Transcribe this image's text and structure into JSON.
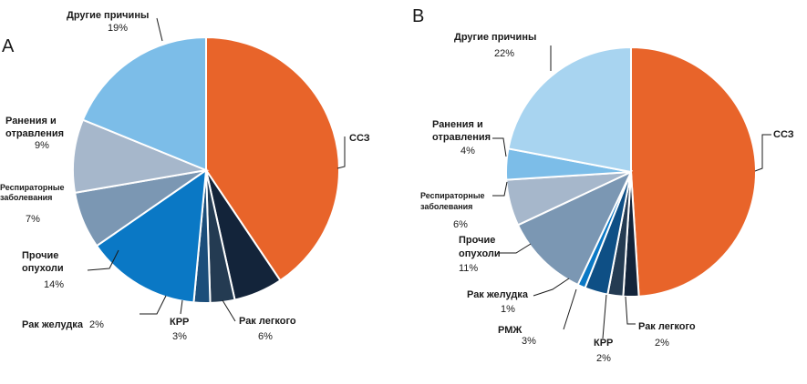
{
  "chart_data": [
    {
      "type": "pie",
      "panel_label": "A",
      "slices": [
        {
          "name": "ССЗ",
          "value": 41,
          "pct_label": "",
          "color": "#E8642A"
        },
        {
          "name": "Рак легкого",
          "value": 6,
          "pct_label": "6%",
          "color": "#13243A"
        },
        {
          "name": "КРР",
          "value": 3,
          "pct_label": "3%",
          "color": "#243B52"
        },
        {
          "name": "Рак желудка",
          "value": 2,
          "pct_label": "2%",
          "color": "#1C4E7A"
        },
        {
          "name": "Прочие опухоли",
          "value": 14,
          "pct_label": "14%",
          "color": "#0A78C5"
        },
        {
          "name": "Респираторные заболевания",
          "value": 7,
          "pct_label": "7%",
          "color": "#7B97B3"
        },
        {
          "name": "Ранения и отравления",
          "value": 9,
          "pct_label": "9%",
          "color": "#A6B7CB"
        },
        {
          "name": "Другие причины",
          "value": 19,
          "pct_label": "19%",
          "color": "#7CBDE8"
        }
      ],
      "text": {
        "other": "Другие причины",
        "other_pct": "19%",
        "injury_1": "Ранения и",
        "injury_2": "отравления",
        "injury_pct": "9%",
        "resp_1": "Респираторные",
        "resp_2": "заболевания",
        "resp_pct": "7%",
        "tumors_1": "Прочие",
        "tumors_2": "опухоли",
        "tumors_pct": "14%",
        "stomach": "Рак желудка",
        "stomach_pct": "2%",
        "crc": "КРР",
        "crc_pct": "3%",
        "lung": "Рак легкого",
        "lung_pct": "6%",
        "cvd": "ССЗ"
      }
    },
    {
      "type": "pie",
      "panel_label": "B",
      "slices": [
        {
          "name": "ССЗ",
          "value": 49,
          "pct_label": "",
          "color": "#E8642A"
        },
        {
          "name": "Рак легкого",
          "value": 2,
          "pct_label": "2%",
          "color": "#13243A"
        },
        {
          "name": "КРР",
          "value": 2,
          "pct_label": "2%",
          "color": "#243B52"
        },
        {
          "name": "РМЖ",
          "value": 3,
          "pct_label": "3%",
          "color": "#0E4F85"
        },
        {
          "name": "Рак желудка",
          "value": 1,
          "pct_label": "1%",
          "color": "#0A78C5"
        },
        {
          "name": "Прочие опухоли",
          "value": 11,
          "pct_label": "11%",
          "color": "#7B97B3"
        },
        {
          "name": "Респираторные заболевания",
          "value": 6,
          "pct_label": "6%",
          "color": "#A6B7CB"
        },
        {
          "name": "Ранения и отравления",
          "value": 4,
          "pct_label": "4%",
          "color": "#7CBDE8"
        },
        {
          "name": "Другие причины",
          "value": 22,
          "pct_label": "22%",
          "color": "#A8D4F0"
        }
      ],
      "text": {
        "other": "Другие причины",
        "other_pct": "22%",
        "injury_1": "Ранения и",
        "injury_2": "отравления",
        "injury_pct": "4%",
        "resp_1": "Респираторные",
        "resp_2": "заболевания",
        "resp_pct": "6%",
        "tumors_1": "Прочие",
        "tumors_2": "опухоли",
        "tumors_pct": "11%",
        "stomach": "Рак желудка",
        "stomach_pct": "1%",
        "breast": "РМЖ",
        "breast_pct": "3%",
        "crc": "КРР",
        "crc_pct": "2%",
        "lung": "Рак легкого",
        "lung_pct": "2%",
        "cvd": "ССЗ"
      }
    }
  ]
}
